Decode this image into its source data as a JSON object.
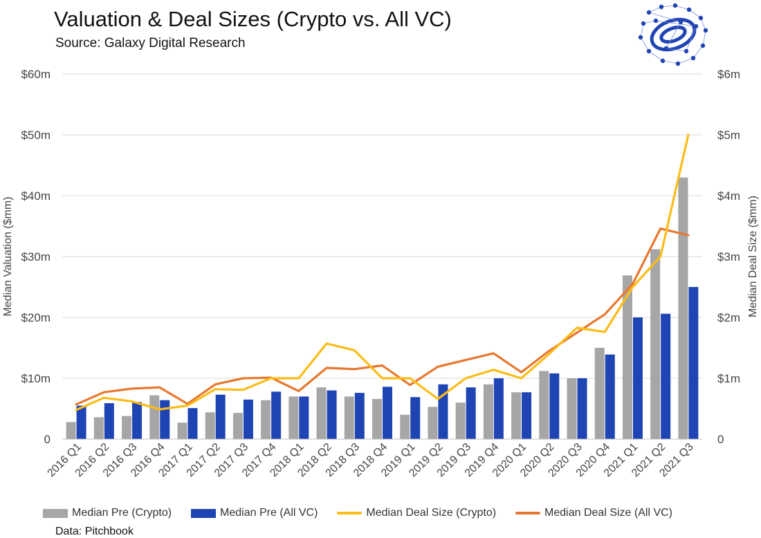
{
  "title": "Valuation & Deal Sizes (Crypto vs. All VC)",
  "subtitle": "Source: Galaxy Digital Research",
  "footnote": "Data: Pitchbook",
  "colors": {
    "crypto_pre": "#a6a6a6",
    "allvc_pre": "#1f44b4",
    "crypto_deal": "#fbbc17",
    "allvc_deal": "#e8772e",
    "gridline": "#d9d9d9",
    "logo": "#1f44b4"
  },
  "logo": {
    "icon": "galaxy-orbit-network-icon"
  },
  "chart_data": {
    "type": "bar",
    "title": "Valuation & Deal Sizes (Crypto vs. All VC)",
    "categories": [
      "2016 Q1",
      "2016 Q2",
      "2016 Q3",
      "2016 Q4",
      "2017 Q1",
      "2017 Q2",
      "2017 Q3",
      "2017 Q4",
      "2018 Q1",
      "2018 Q2",
      "2018 Q3",
      "2018 Q4",
      "2019 Q1",
      "2019 Q2",
      "2019 Q3",
      "2019 Q4",
      "2020 Q1",
      "2020 Q2",
      "2020 Q3",
      "2020 Q4",
      "2021 Q1",
      "2021 Q2",
      "2021 Q3"
    ],
    "ylabel": "Median Valuation ($mm)",
    "y2label": "Median Deal Size ($mm)",
    "ylim": [
      0,
      60
    ],
    "y2lim": [
      0,
      6
    ],
    "yticks": [
      0,
      10,
      20,
      30,
      40,
      50,
      60
    ],
    "ytick_labels": [
      "0",
      "$10m",
      "$20m",
      "$30m",
      "$40m",
      "$50m",
      "$60m"
    ],
    "y2ticks": [
      0,
      1,
      2,
      3,
      4,
      5,
      6
    ],
    "y2tick_labels": [
      "0",
      "$1m",
      "$2m",
      "$3m",
      "$4m",
      "$5m",
      "$6m"
    ],
    "grid": true,
    "legend_position": "bottom",
    "series": [
      {
        "name": "Median Pre (Crypto)",
        "kind": "bar",
        "axis": "left",
        "values": [
          2.8,
          3.6,
          3.8,
          7.2,
          2.7,
          4.4,
          4.3,
          6.4,
          7.0,
          8.5,
          7.0,
          6.6,
          4.0,
          5.3,
          6.0,
          9.0,
          7.7,
          11.2,
          10.0,
          15.0,
          26.9,
          31.2,
          43.0
        ]
      },
      {
        "name": "Median Pre (All VC)",
        "kind": "bar",
        "axis": "left",
        "values": [
          5.5,
          5.9,
          6.1,
          6.4,
          5.1,
          7.3,
          6.5,
          7.8,
          7.0,
          8.0,
          7.6,
          8.6,
          6.9,
          9.0,
          8.5,
          10.0,
          7.7,
          10.8,
          10.0,
          13.9,
          20.0,
          20.6,
          25.0
        ]
      },
      {
        "name": "Median Deal Size (Crypto)",
        "kind": "line",
        "axis": "right",
        "values": [
          0.48,
          0.68,
          0.62,
          0.49,
          0.55,
          0.82,
          0.81,
          1.0,
          1.0,
          1.57,
          1.46,
          1.0,
          1.0,
          0.66,
          1.0,
          1.14,
          1.0,
          1.4,
          1.83,
          1.76,
          2.5,
          3.0,
          5.0
        ]
      },
      {
        "name": "Median Deal Size (All VC)",
        "kind": "line",
        "axis": "right",
        "values": [
          0.57,
          0.77,
          0.83,
          0.85,
          0.58,
          0.9,
          1.0,
          1.01,
          0.79,
          1.17,
          1.15,
          1.21,
          0.89,
          1.19,
          1.3,
          1.41,
          1.1,
          1.45,
          1.75,
          2.05,
          2.55,
          3.46,
          3.35
        ]
      }
    ]
  }
}
